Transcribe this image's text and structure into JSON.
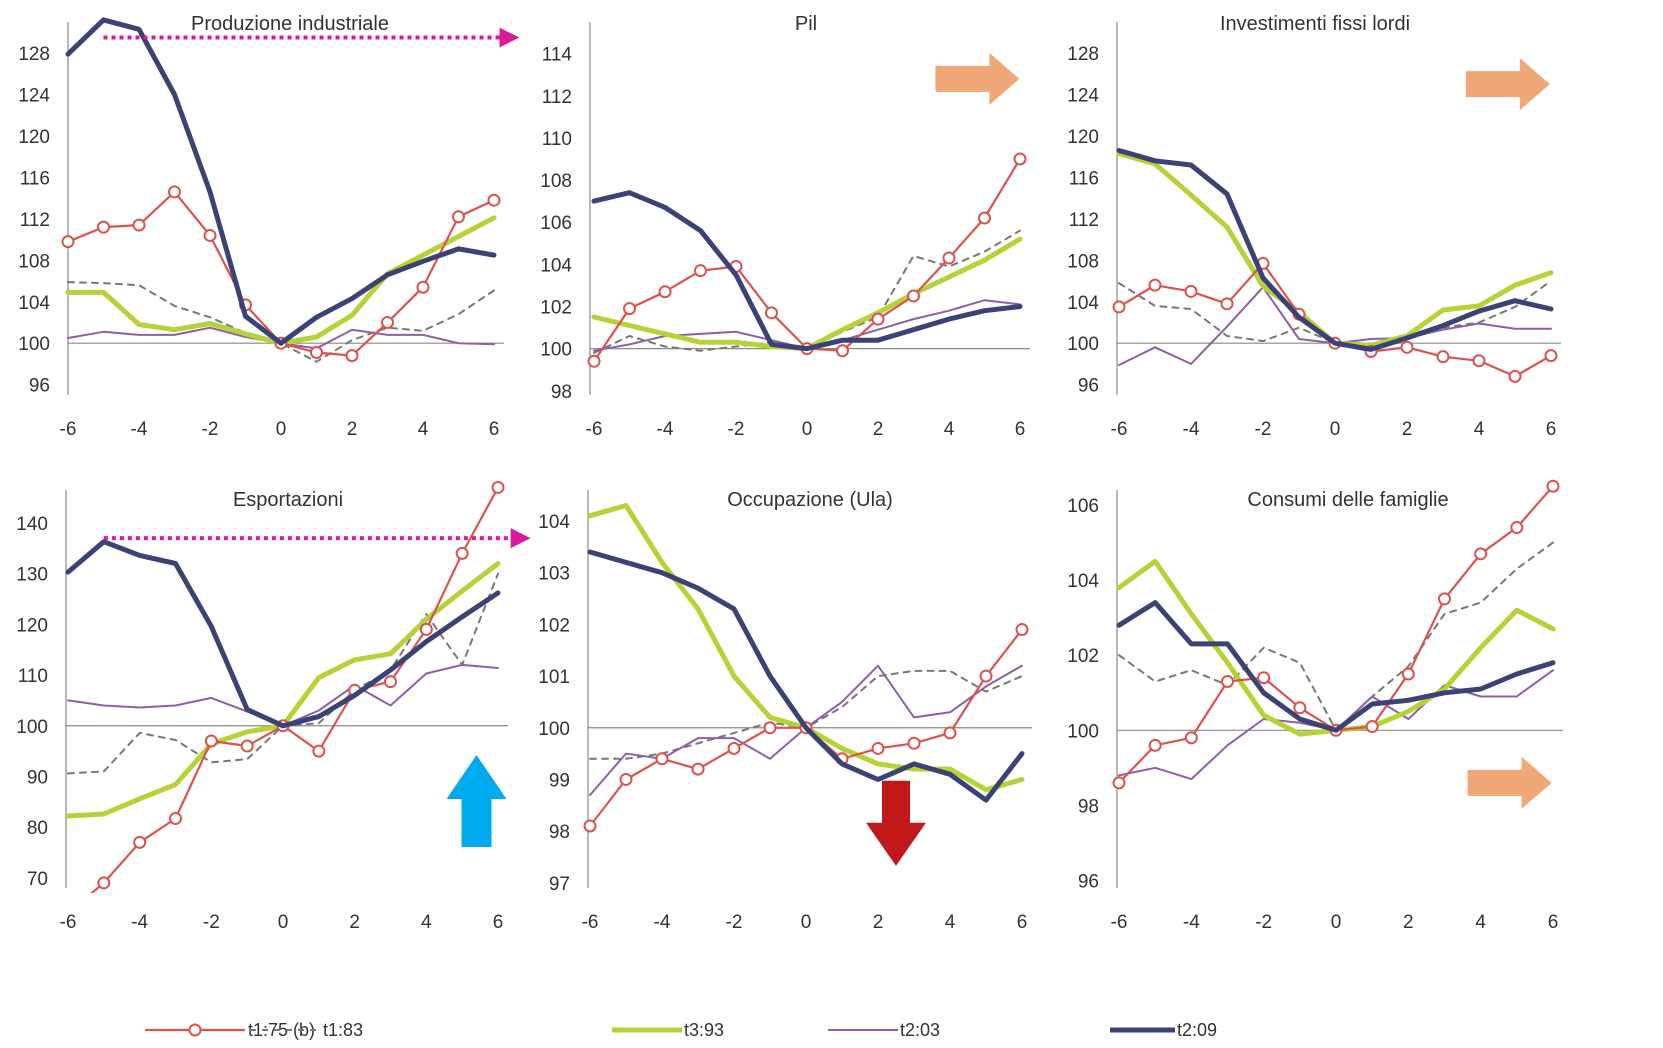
{
  "series_styles": {
    "t1:75 (b)": {
      "color": "#d9534f",
      "marker": "circle"
    },
    "t1:83": {
      "color": "#777777",
      "dash": true
    },
    "t3:93": {
      "color": "#b5d334"
    },
    "t2:03": {
      "color": "#8e5fa6"
    },
    "t2:09": {
      "color": "#3a4276"
    }
  },
  "legend": [
    "t1:75 (b)",
    "t1:83",
    "t3:93",
    "t2:03",
    "t2:09"
  ],
  "annotation_colors": {
    "dotted_arrow": "#d81b9a",
    "orange_arrow": "#f0a878",
    "blue_arrow": "#00aaee",
    "red_arrow": "#c01818"
  },
  "chart_data": [
    {
      "type": "line",
      "title": "Produzione industriale",
      "x": [
        -6,
        -5,
        -4,
        -3,
        -2,
        -1,
        0,
        1,
        2,
        3,
        4,
        5,
        6
      ],
      "xticks": [
        -6,
        -4,
        -2,
        0,
        2,
        4,
        6
      ],
      "yticks": [
        96,
        100,
        104,
        108,
        112,
        116,
        120,
        124,
        128
      ],
      "ylim": [
        95,
        131
      ],
      "baseline": 100,
      "series": [
        {
          "name": "t1:75 (b)",
          "values": [
            109.8,
            111.2,
            111.4,
            114.6,
            110.4,
            103.7,
            100,
            99.1,
            98.8,
            102.0,
            105.4,
            112.2,
            113.8
          ]
        },
        {
          "name": "t1:83",
          "values": [
            105.9,
            105.8,
            105.6,
            103.6,
            102.5,
            101.0,
            100,
            98.2,
            100.3,
            101.5,
            101.2,
            102.8,
            105.1
          ]
        },
        {
          "name": "t3:93",
          "values": [
            104.9,
            104.9,
            101.8,
            101.3,
            101.9,
            100.9,
            100,
            100.6,
            102.7,
            106.7,
            108.5,
            110.3,
            112.1
          ]
        },
        {
          "name": "t2:03",
          "values": [
            100.5,
            101.1,
            100.8,
            100.8,
            101.5,
            100.6,
            100,
            99.5,
            101.3,
            100.8,
            100.8,
            100.0,
            99.9
          ]
        },
        {
          "name": "t2:09",
          "values": [
            127.9,
            131.2,
            130.3,
            124.0,
            114.6,
            102.6,
            100,
            102.5,
            104.3,
            106.6,
            107.9,
            109.1,
            108.5
          ]
        }
      ],
      "annotations": [
        {
          "kind": "dotted_arrow",
          "from": [
            -5,
            129.5
          ],
          "to": [
            6.6,
            129.5
          ]
        }
      ]
    },
    {
      "type": "line",
      "title": "Pil",
      "x": [
        -6,
        -5,
        -4,
        -3,
        -2,
        -1,
        0,
        1,
        2,
        3,
        4,
        5,
        6
      ],
      "xticks": [
        -6,
        -4,
        -2,
        0,
        2,
        4,
        6
      ],
      "yticks": [
        98,
        100,
        102,
        104,
        106,
        108,
        110,
        112,
        114
      ],
      "ylim": [
        97.8,
        115.5
      ],
      "baseline": 100,
      "series": [
        {
          "name": "t1:75 (b)",
          "values": [
            99.4,
            101.9,
            102.7,
            103.7,
            103.9,
            101.7,
            100,
            99.9,
            101.4,
            102.5,
            104.3,
            106.2,
            109.0
          ]
        },
        {
          "name": "t1:83",
          "values": [
            99.8,
            100.6,
            100.1,
            99.9,
            100.1,
            100.3,
            100,
            100.8,
            101.5,
            104.4,
            103.9,
            104.6,
            105.6
          ]
        },
        {
          "name": "t3:93",
          "values": [
            101.5,
            101.1,
            100.7,
            100.3,
            100.3,
            100.1,
            100,
            100.9,
            101.7,
            102.6,
            103.4,
            104.2,
            105.2
          ]
        },
        {
          "name": "t2:03",
          "values": [
            99.9,
            100.2,
            100.6,
            100.7,
            100.8,
            100.4,
            100,
            100.4,
            100.9,
            101.4,
            101.8,
            102.3,
            102.1
          ]
        },
        {
          "name": "t2:09",
          "values": [
            107.0,
            107.4,
            106.7,
            105.6,
            103.5,
            100.2,
            100,
            100.4,
            100.4,
            100.9,
            101.4,
            101.8,
            102.0
          ]
        }
      ],
      "annotations": [
        {
          "kind": "orange_arrow",
          "at": [
            4.8,
            112.8
          ]
        }
      ]
    },
    {
      "type": "line",
      "title": "Investimenti fissi lordi",
      "x": [
        -6,
        -5,
        -4,
        -3,
        -2,
        -1,
        0,
        1,
        2,
        3,
        4,
        5,
        6
      ],
      "xticks": [
        -6,
        -4,
        -2,
        0,
        2,
        4,
        6
      ],
      "yticks": [
        96,
        100,
        104,
        108,
        112,
        116,
        120,
        124,
        128
      ],
      "ylim": [
        95,
        131
      ],
      "baseline": 100,
      "series": [
        {
          "name": "t1:75 (b)",
          "values": [
            103.5,
            105.6,
            105.0,
            103.8,
            107.7,
            102.8,
            100,
            99.2,
            99.6,
            98.7,
            98.3,
            96.8,
            98.8
          ]
        },
        {
          "name": "t1:83",
          "values": [
            105.8,
            103.6,
            103.3,
            100.7,
            100.2,
            101.5,
            100,
            99.8,
            100.9,
            101.5,
            102.0,
            103.5,
            106.0
          ]
        },
        {
          "name": "t3:93",
          "values": [
            118.3,
            117.3,
            114.3,
            111.2,
            105.5,
            103.0,
            100,
            99.8,
            100.7,
            103.2,
            103.6,
            105.6,
            106.8
          ]
        },
        {
          "name": "t2:03",
          "values": [
            97.9,
            99.6,
            98.0,
            101.6,
            105.4,
            100.4,
            100,
            100.4,
            100.5,
            101.3,
            101.9,
            101.4,
            101.4
          ]
        },
        {
          "name": "t2:09",
          "values": [
            118.6,
            117.6,
            117.2,
            114.4,
            106.3,
            102.5,
            100,
            99.4,
            100.5,
            101.7,
            103.1,
            104.1,
            103.3
          ]
        }
      ],
      "annotations": [
        {
          "kind": "orange_arrow",
          "at": [
            4.8,
            125.0
          ]
        }
      ]
    },
    {
      "type": "line",
      "title": "Esportazioni",
      "x": [
        -6,
        -5,
        -4,
        -3,
        -2,
        -1,
        0,
        1,
        2,
        3,
        4,
        5,
        6
      ],
      "xticks": [
        -6,
        -4,
        -2,
        0,
        2,
        4,
        6
      ],
      "yticks": [
        70,
        80,
        90,
        100,
        110,
        120,
        130,
        140
      ],
      "ylim": [
        68,
        146.5
      ],
      "baseline": 100,
      "series": [
        {
          "name": "t1:75 (b)",
          "values": [
            63.0,
            69.0,
            77.0,
            81.7,
            97.0,
            96.0,
            100,
            95.0,
            107.0,
            108.7,
            119.0,
            134.0,
            147.0
          ]
        },
        {
          "name": "t1:83",
          "values": [
            90.6,
            91.0,
            98.6,
            97.2,
            92.8,
            93.4,
            100,
            100.5,
            107.0,
            111.0,
            122.0,
            112.0,
            130.0
          ]
        },
        {
          "name": "t3:93",
          "values": [
            82.2,
            82.6,
            85.6,
            88.4,
            96.4,
            98.8,
            100,
            109.5,
            113.0,
            114.2,
            121.0,
            126.6,
            132.0
          ]
        },
        {
          "name": "t2:03",
          "values": [
            105.0,
            104.0,
            103.6,
            104.0,
            105.5,
            102.8,
            100,
            103.0,
            108.0,
            104.0,
            110.3,
            112.0,
            111.4
          ]
        },
        {
          "name": "t2:09",
          "values": [
            130.3,
            136.3,
            133.6,
            132.0,
            119.6,
            103.2,
            100,
            101.8,
            106.0,
            111.0,
            116.6,
            121.5,
            126.2
          ]
        }
      ],
      "annotations": [
        {
          "kind": "dotted_arrow",
          "from": [
            -5,
            137.0
          ],
          "to": [
            6.8,
            137.0
          ]
        },
        {
          "kind": "blue_arrow",
          "at": [
            5.4,
            82.0
          ]
        }
      ]
    },
    {
      "type": "line",
      "title": "Occupazione (Ula)",
      "x": [
        -6,
        -5,
        -4,
        -3,
        -2,
        -1,
        0,
        1,
        2,
        3,
        4,
        5,
        6
      ],
      "xticks": [
        -6,
        -4,
        -2,
        0,
        2,
        4,
        6
      ],
      "yticks": [
        97,
        98,
        99,
        100,
        101,
        102,
        103,
        104
      ],
      "ylim": [
        96.9,
        104.6
      ],
      "baseline": 100,
      "series": [
        {
          "name": "t1:75 (b)",
          "values": [
            98.1,
            99.0,
            99.4,
            99.2,
            99.6,
            100.0,
            100,
            99.4,
            99.6,
            99.7,
            99.9,
            101.0,
            101.9
          ]
        },
        {
          "name": "t1:83",
          "values": [
            99.4,
            99.4,
            99.5,
            99.7,
            99.9,
            100.1,
            100,
            100.4,
            101.0,
            101.1,
            101.1,
            100.7,
            101.0
          ]
        },
        {
          "name": "t3:93",
          "values": [
            104.1,
            104.3,
            103.2,
            102.3,
            101.0,
            100.2,
            100,
            99.6,
            99.3,
            99.2,
            99.2,
            98.8,
            99.0
          ]
        },
        {
          "name": "t2:03",
          "values": [
            98.7,
            99.5,
            99.4,
            99.8,
            99.8,
            99.4,
            100,
            100.5,
            101.2,
            100.2,
            100.3,
            100.8,
            101.2
          ]
        },
        {
          "name": "t2:09",
          "values": [
            103.4,
            103.2,
            103.0,
            102.7,
            102.3,
            101.0,
            100,
            99.3,
            99.0,
            99.3,
            99.1,
            98.6,
            99.5
          ]
        }
      ],
      "annotations": [
        {
          "kind": "red_arrow",
          "at": [
            2.5,
            98.2
          ]
        }
      ]
    },
    {
      "type": "line",
      "title": "Consumi delle famiglie",
      "x": [
        -6,
        -5,
        -4,
        -3,
        -2,
        -1,
        0,
        1,
        2,
        3,
        4,
        5,
        6
      ],
      "xticks": [
        -6,
        -4,
        -2,
        0,
        2,
        4,
        6
      ],
      "yticks": [
        96,
        98,
        100,
        102,
        104,
        106
      ],
      "ylim": [
        95.8,
        106.4
      ],
      "baseline": 100,
      "series": [
        {
          "name": "t1:75 (b)",
          "values": [
            98.6,
            99.6,
            99.8,
            101.3,
            101.4,
            100.6,
            100,
            100.1,
            101.5,
            103.5,
            104.7,
            105.4,
            106.5
          ]
        },
        {
          "name": "t1:83",
          "values": [
            102.0,
            101.3,
            101.6,
            101.2,
            102.2,
            101.8,
            100,
            100.9,
            101.7,
            103.1,
            103.4,
            104.3,
            105.0
          ]
        },
        {
          "name": "t3:93",
          "values": [
            103.8,
            104.5,
            103.1,
            101.8,
            100.4,
            99.9,
            100,
            100.1,
            100.5,
            101.1,
            102.2,
            103.2,
            102.7
          ]
        },
        {
          "name": "t2:03",
          "values": [
            98.8,
            99.0,
            98.7,
            99.6,
            100.3,
            100.2,
            100,
            100.9,
            100.3,
            101.2,
            100.9,
            100.9,
            101.6
          ]
        },
        {
          "name": "t2:09",
          "values": [
            102.8,
            103.4,
            102.3,
            102.3,
            101.0,
            100.3,
            100,
            100.7,
            100.8,
            101.0,
            101.1,
            101.5,
            101.8
          ]
        }
      ],
      "annotations": [
        {
          "kind": "orange_arrow",
          "at": [
            4.8,
            98.6
          ]
        }
      ]
    }
  ]
}
